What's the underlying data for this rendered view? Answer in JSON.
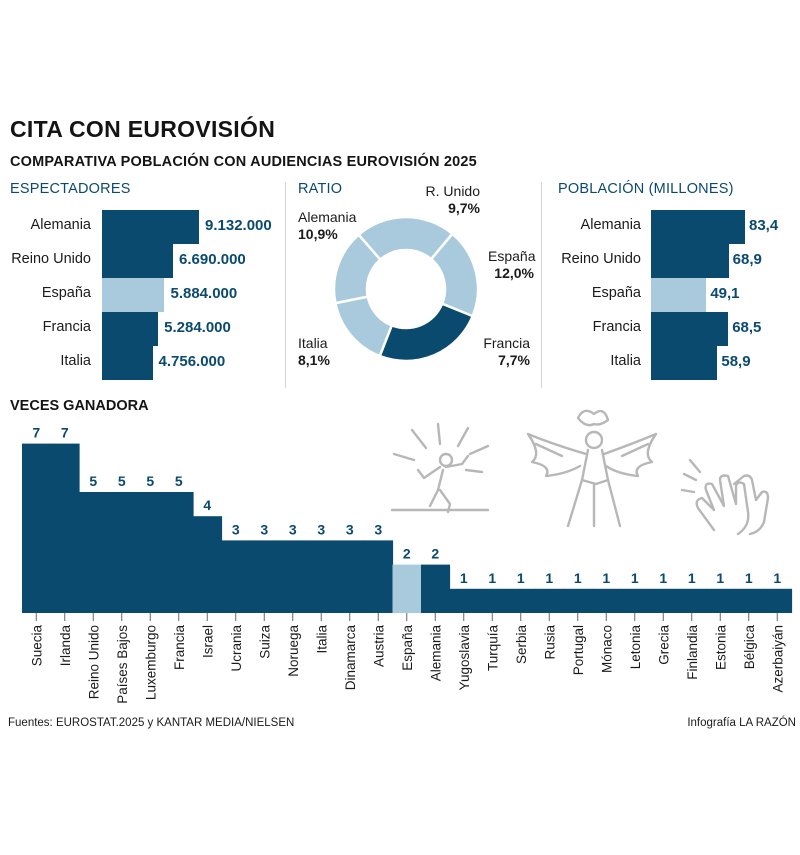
{
  "title": "CITA CON EUROVISIÓN",
  "subtitle": "COMPARATIVA POBLACIÓN CON AUDIENCIAS EUROVISIÓN 2025",
  "colors": {
    "dark": "#0b4a6f",
    "light": "#a9c9dc",
    "pie_light": "#a9c9dc"
  },
  "chart_data": [
    {
      "type": "bar",
      "title": "ESPECTADORES",
      "categories": [
        "Alemania",
        "Reino Unido",
        "España",
        "Francia",
        "Italia"
      ],
      "values": [
        9132000,
        6690000,
        5884000,
        5284000,
        4756000
      ],
      "value_labels": [
        "9.132.000",
        "6.690.000",
        "5.884.000",
        "5.284.000",
        "4.756.000"
      ],
      "highlight": "España"
    },
    {
      "type": "pie",
      "title": "RATIO",
      "categories": [
        "R. Unido",
        "España",
        "Francia",
        "Italia",
        "Alemania"
      ],
      "values": [
        9.7,
        12.0,
        7.7,
        8.1,
        10.9
      ],
      "value_labels": [
        "9,7%",
        "12,0%",
        "7,7%",
        "8,1%",
        "10,9%"
      ],
      "highlight": "España"
    },
    {
      "type": "bar",
      "title": "POBLACIÓN (MILLONES)",
      "categories": [
        "Alemania",
        "Reino Unido",
        "España",
        "Francia",
        "Italia"
      ],
      "values": [
        83.4,
        68.9,
        49.1,
        68.5,
        58.9
      ],
      "value_labels": [
        "83,4",
        "68,9",
        "49,1",
        "68,5",
        "58,9"
      ],
      "highlight": "España"
    },
    {
      "type": "bar",
      "title": "VECES GANADORA",
      "categories": [
        "Suecia",
        "Irlanda",
        "Reino Unido",
        "Países Bajos",
        "Luxemburgo",
        "Francia",
        "Israel",
        "Ucrania",
        "Suiza",
        "Noruega",
        "Italia",
        "Dinamarca",
        "Austria",
        "España",
        "Alemania",
        "Yugoslavia",
        "Turquía",
        "Serbia",
        "Rusia",
        "Portugal",
        "Mónaco",
        "Letonia",
        "Grecia",
        "Finlandia",
        "Estonia",
        "Bélgica",
        "Azerbaiyán"
      ],
      "values": [
        7,
        7,
        5,
        5,
        5,
        5,
        4,
        3,
        3,
        3,
        3,
        3,
        3,
        2,
        2,
        1,
        1,
        1,
        1,
        1,
        1,
        1,
        1,
        1,
        1,
        1,
        1
      ],
      "highlight": "España",
      "ylim": [
        0,
        7
      ]
    }
  ],
  "icons": [
    "singer-icon",
    "angel-performer-icon",
    "clapping-hands-icon"
  ],
  "footer": {
    "source": "Fuentes: EUROSTAT.2025 y KANTAR MEDIA/NIELSEN",
    "credit": "Infografía LA RAZÓN"
  }
}
